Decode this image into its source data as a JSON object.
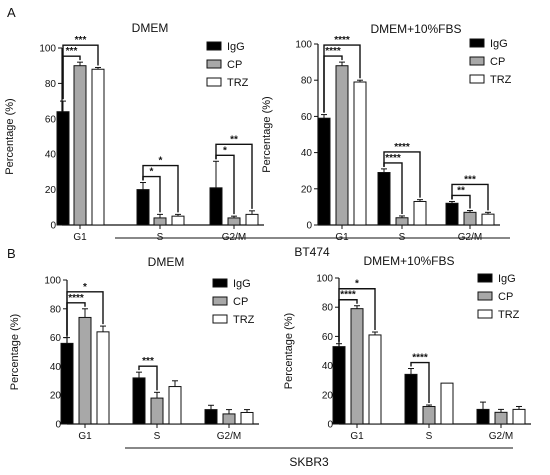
{
  "figure": {
    "panel_labels": [
      "A",
      "B"
    ],
    "group_labels": [
      "BT474",
      "SKBR3"
    ]
  },
  "chart_data": [
    {
      "panel": "A",
      "type": "bar",
      "title": "DMEM",
      "ylabel": "Percentage (%)",
      "xlabel": "",
      "categories": [
        "G1",
        "S",
        "G2/M"
      ],
      "ylim": [
        0,
        100
      ],
      "yticks": [
        0,
        20,
        40,
        60,
        80,
        100
      ],
      "series": [
        {
          "name": "IgG",
          "values": [
            64,
            20,
            21
          ],
          "errors": [
            6,
            4,
            15
          ],
          "fill": "#000000"
        },
        {
          "name": "CP",
          "values": [
            90,
            4,
            4
          ],
          "errors": [
            2,
            2,
            1
          ],
          "fill": "#a8a8a8"
        },
        {
          "name": "TRZ",
          "values": [
            88,
            5,
            6
          ],
          "errors": [
            1,
            1,
            2
          ],
          "fill": "#ffffff"
        }
      ],
      "significance": [
        {
          "category": "G1",
          "from": "IgG",
          "to": "CP",
          "label": "***"
        },
        {
          "category": "G1",
          "from": "IgG",
          "to": "TRZ",
          "label": "***"
        },
        {
          "category": "S",
          "from": "IgG",
          "to": "CP",
          "label": "*"
        },
        {
          "category": "S",
          "from": "IgG",
          "to": "TRZ",
          "label": "*"
        },
        {
          "category": "G2/M",
          "from": "IgG",
          "to": "CP",
          "label": "*"
        },
        {
          "category": "G2/M",
          "from": "IgG",
          "to": "TRZ",
          "label": "**"
        }
      ],
      "legend": "top-right",
      "grid": false
    },
    {
      "panel": "A",
      "type": "bar",
      "title": "DMEM+10%FBS",
      "ylabel": "Percentage (%)",
      "xlabel": "",
      "categories": [
        "G1",
        "S",
        "G2/M"
      ],
      "ylim": [
        0,
        100
      ],
      "yticks": [
        0,
        20,
        40,
        60,
        80,
        100
      ],
      "series": [
        {
          "name": "IgG",
          "values": [
            59,
            29,
            12
          ],
          "errors": [
            2,
            2,
            1
          ],
          "fill": "#000000"
        },
        {
          "name": "CP",
          "values": [
            88,
            4,
            7
          ],
          "errors": [
            2,
            1,
            1
          ],
          "fill": "#a8a8a8"
        },
        {
          "name": "TRZ",
          "values": [
            79,
            13,
            6
          ],
          "errors": [
            1,
            1,
            1
          ],
          "fill": "#ffffff"
        }
      ],
      "significance": [
        {
          "category": "G1",
          "from": "IgG",
          "to": "CP",
          "label": "****"
        },
        {
          "category": "G1",
          "from": "IgG",
          "to": "TRZ",
          "label": "****"
        },
        {
          "category": "S",
          "from": "IgG",
          "to": "CP",
          "label": "****"
        },
        {
          "category": "S",
          "from": "IgG",
          "to": "TRZ",
          "label": "****"
        },
        {
          "category": "G2/M",
          "from": "IgG",
          "to": "CP",
          "label": "**"
        },
        {
          "category": "G2/M",
          "from": "IgG",
          "to": "TRZ",
          "label": "***"
        }
      ],
      "legend": "top-right",
      "grid": false
    },
    {
      "panel": "B",
      "type": "bar",
      "title": "DMEM",
      "ylabel": "Percentage (%)",
      "xlabel": "",
      "categories": [
        "G1",
        "S",
        "G2/M"
      ],
      "ylim": [
        0,
        100
      ],
      "yticks": [
        0,
        20,
        40,
        60,
        80,
        100
      ],
      "series": [
        {
          "name": "IgG",
          "values": [
            56,
            32,
            10
          ],
          "errors": [
            4,
            4,
            3
          ],
          "fill": "#000000"
        },
        {
          "name": "CP",
          "values": [
            74,
            18,
            7
          ],
          "errors": [
            6,
            4,
            3
          ],
          "fill": "#a8a8a8"
        },
        {
          "name": "TRZ",
          "values": [
            64,
            26,
            8
          ],
          "errors": [
            4,
            4,
            2
          ],
          "fill": "#ffffff"
        }
      ],
      "significance": [
        {
          "category": "G1",
          "from": "IgG",
          "to": "CP",
          "label": "****"
        },
        {
          "category": "G1",
          "from": "IgG",
          "to": "TRZ",
          "label": "*"
        },
        {
          "category": "S",
          "from": "IgG",
          "to": "CP",
          "label": "***"
        }
      ],
      "legend": "top-right",
      "grid": false
    },
    {
      "panel": "B",
      "type": "bar",
      "title": "DMEM+10%FBS",
      "ylabel": "Percentage (%)",
      "xlabel": "",
      "categories": [
        "G1",
        "S",
        "G2/M"
      ],
      "ylim": [
        0,
        100
      ],
      "yticks": [
        0,
        20,
        40,
        60,
        80,
        100
      ],
      "series": [
        {
          "name": "IgG",
          "values": [
            53,
            34,
            10
          ],
          "errors": [
            2,
            4,
            5
          ],
          "fill": "#000000"
        },
        {
          "name": "CP",
          "values": [
            79,
            12,
            8
          ],
          "errors": [
            2,
            1,
            2
          ],
          "fill": "#a8a8a8"
        },
        {
          "name": "TRZ",
          "values": [
            61,
            28,
            10
          ],
          "errors": [
            2,
            0,
            2
          ],
          "fill": "#ffffff"
        }
      ],
      "significance": [
        {
          "category": "G1",
          "from": "IgG",
          "to": "CP",
          "label": "****"
        },
        {
          "category": "G1",
          "from": "IgG",
          "to": "TRZ",
          "label": "*"
        },
        {
          "category": "S",
          "from": "IgG",
          "to": "CP",
          "label": "****"
        }
      ],
      "legend": "top-right",
      "grid": false
    }
  ]
}
